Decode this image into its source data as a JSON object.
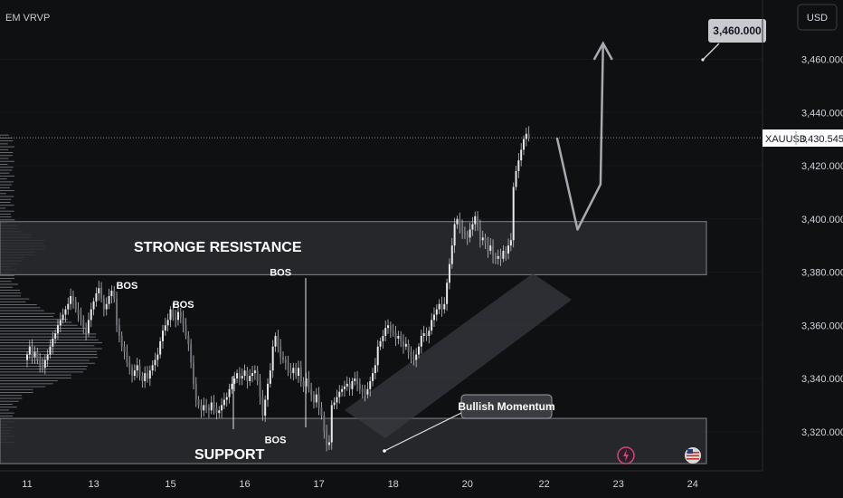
{
  "indicator_label": "EM VRVP",
  "currency_button": "USD",
  "chart_data": {
    "type": "candlestick",
    "symbol": "XAUUSD",
    "last_price": "3,430.545",
    "ylim": [
      3308,
      3476
    ],
    "y_ticks": [
      {
        "value": 3460,
        "label": "3,460.000"
      },
      {
        "value": 3440,
        "label": "3,440.000"
      },
      {
        "value": 3420,
        "label": "3,420.000"
      },
      {
        "value": 3400,
        "label": "3,400.000"
      },
      {
        "value": 3380,
        "label": "3,380.000"
      },
      {
        "value": 3360,
        "label": "3,360.000"
      },
      {
        "value": 3340,
        "label": "3,340.000"
      },
      {
        "value": 3320,
        "label": "3,320.000"
      }
    ],
    "x_ticks": [
      {
        "index": 0,
        "label": "11"
      },
      {
        "index": 26,
        "label": "13"
      },
      {
        "index": 56,
        "label": "15"
      },
      {
        "index": 85,
        "label": "16"
      },
      {
        "index": 114,
        "label": "17"
      },
      {
        "index": 143,
        "label": "18"
      },
      {
        "index": 172,
        "label": "20"
      },
      {
        "index": 202,
        "label": "22"
      },
      {
        "index": 231,
        "label": "23"
      },
      {
        "index": 260,
        "label": "24"
      }
    ],
    "closes": [
      3349,
      3352,
      3348,
      3350,
      3347,
      3345,
      3344,
      3347,
      3349,
      3352,
      3355,
      3357,
      3360,
      3362,
      3364,
      3366,
      3368,
      3371,
      3369,
      3366,
      3364,
      3362,
      3359,
      3357,
      3362,
      3366,
      3369,
      3372,
      3374,
      3370,
      3366,
      3368,
      3371,
      3373,
      3370,
      3360,
      3356,
      3352,
      3350,
      3346,
      3344,
      3341,
      3343,
      3345,
      3341,
      3339,
      3342,
      3340,
      3343,
      3345,
      3347,
      3349,
      3354,
      3358,
      3360,
      3362,
      3366,
      3363,
      3362,
      3365,
      3363,
      3360,
      3356,
      3353,
      3346,
      3338,
      3332,
      3330,
      3328,
      3330,
      3329,
      3328,
      3331,
      3329,
      3327,
      3328,
      3330,
      3332,
      3333,
      3336,
      3338,
      3340,
      3342,
      3340,
      3341,
      3343,
      3339,
      3341,
      3342,
      3343,
      3339,
      3333,
      3326,
      3332,
      3338,
      3343,
      3352,
      3356,
      3352,
      3348,
      3347,
      3346,
      3343,
      3342,
      3344,
      3341,
      3344,
      3339,
      3337,
      3340,
      3336,
      3334,
      3331,
      3334,
      3329,
      3326,
      3320,
      3315,
      3316,
      3330,
      3331,
      3333,
      3335,
      3336,
      3337,
      3338,
      3336,
      3339,
      3340,
      3338,
      3336,
      3335,
      3334,
      3336,
      3339,
      3342,
      3345,
      3352,
      3354,
      3356,
      3359,
      3360,
      3358,
      3357,
      3355,
      3356,
      3354,
      3352,
      3353,
      3350,
      3348,
      3347,
      3349,
      3352,
      3356,
      3357,
      3356,
      3358,
      3362,
      3364,
      3366,
      3368,
      3366,
      3368,
      3376,
      3383,
      3390,
      3398,
      3400,
      3397,
      3395,
      3394,
      3393,
      3396,
      3398,
      3401,
      3397,
      3392,
      3393,
      3391,
      3388,
      3390,
      3386,
      3385,
      3386,
      3385,
      3388,
      3387,
      3390,
      3392,
      3412,
      3418,
      3422,
      3426,
      3430,
      3432,
      3430.5
    ],
    "resistance_zone": [
      3379,
      3399
    ],
    "support_zone": [
      3308,
      3325
    ],
    "projection": [
      {
        "index": 207,
        "price": 3430.5
      },
      {
        "index": 215,
        "price": 3396
      },
      {
        "index": 224,
        "price": 3413
      },
      {
        "index": 225,
        "price": 3466
      }
    ],
    "target_price": "3,460.000",
    "annotations": [
      {
        "text": "STRONGE RESISTANCE",
        "index": 44,
        "price": 3390
      },
      {
        "text": "SUPPORT",
        "index": 77,
        "price": 3316
      },
      {
        "text": "BOS",
        "index": 39,
        "price": 3375
      },
      {
        "text": "BOS",
        "index": 61,
        "price": 3368
      },
      {
        "text": "BOS",
        "index": 99,
        "price": 3380
      },
      {
        "text": "BOS",
        "index": 97,
        "price": 3317
      },
      {
        "text": "Bullish Momentum",
        "index": 173,
        "price": 3327
      }
    ]
  }
}
